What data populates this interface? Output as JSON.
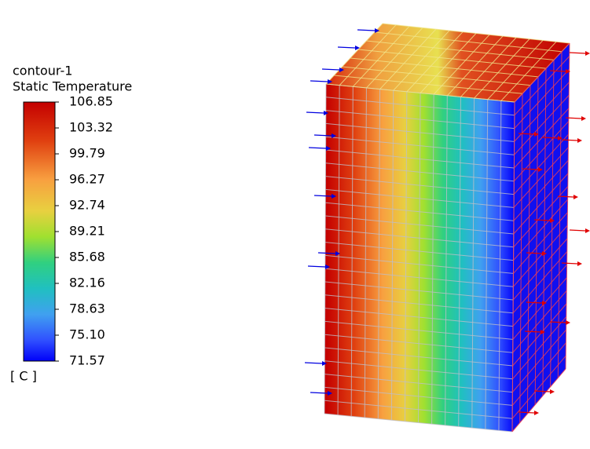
{
  "legend": {
    "title": "contour-1",
    "subtitle": "Static Temperature",
    "ticks": [
      "106.85",
      "103.32",
      "99.79",
      "96.27",
      "92.74",
      "89.21",
      "85.68",
      "82.16",
      "78.63",
      "75.10",
      "71.57"
    ],
    "units": "[ C ]"
  }
}
